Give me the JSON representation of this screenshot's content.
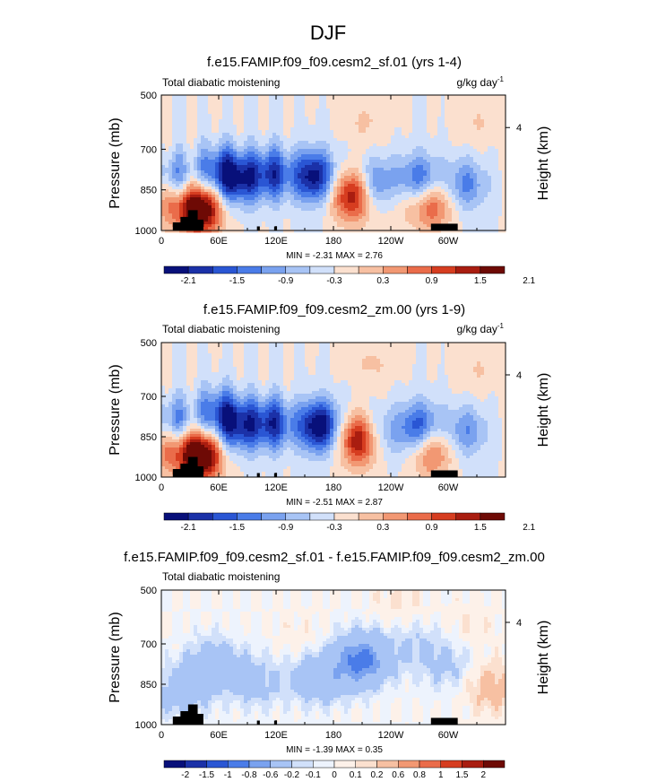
{
  "figure": {
    "title": "DJF"
  },
  "colors": {
    "frame": "#000000",
    "topography": "#000000",
    "colormap_absolute": [
      "#08107a",
      "#1b31a8",
      "#2a56d4",
      "#4a7ce8",
      "#7aa2ef",
      "#a8c4f5",
      "#d1e0fa",
      "#fbe0cf",
      "#f7c0a2",
      "#f29873",
      "#ea6c4a",
      "#d63d20",
      "#a91d10",
      "#6e0a05"
    ],
    "colormap_difference": [
      "#08107a",
      "#1b31a8",
      "#2a56d4",
      "#4a7ce8",
      "#7aa2ef",
      "#a8c4f5",
      "#d1e0fa",
      "#edf3fd",
      "#fdf1e9",
      "#fbe0cf",
      "#f7c0a2",
      "#f29873",
      "#ea6c4a",
      "#d63d20",
      "#a91d10",
      "#6e0a05"
    ]
  },
  "chart_data": [
    {
      "type": "heatmap",
      "title": "f.e15.FAMIP.f09_f09.cesm2_sf.01 (yrs 1-4)",
      "left_string": "Total diabatic moistening",
      "units": "g/kg day",
      "units_exponent": "-1",
      "ylabel": "Pressure (mb)",
      "ylabel_right": "Height (km)",
      "x_ticks": [
        "0",
        "60E",
        "120E",
        "180",
        "120W",
        "60W"
      ],
      "x_tick_values": [
        0,
        60,
        120,
        180,
        240,
        300
      ],
      "xlim": [
        0,
        360
      ],
      "y_ticks": [
        "500",
        "700",
        "850",
        "1000"
      ],
      "y_tick_values": [
        500,
        700,
        850,
        1000
      ],
      "ylim": [
        1000,
        500
      ],
      "y_right_ticks": [
        "4"
      ],
      "y_right_tick_values": [
        4
      ],
      "stats": "MIN = -2.31  MAX =  2.76",
      "min": -2.31,
      "max": 2.76,
      "colorbar_labels": [
        "-2.1",
        "-1.5",
        "-0.9",
        "-0.3",
        "0.3",
        "0.9",
        "1.5",
        "2.1"
      ],
      "features": [
        {
          "lon": 160,
          "p": 800,
          "value": -2.0
        },
        {
          "lon": 115,
          "p": 790,
          "value": -1.5
        },
        {
          "lon": 80,
          "p": 810,
          "value": -1.6
        },
        {
          "lon": 60,
          "p": 780,
          "value": -1.2
        },
        {
          "lon": 225,
          "p": 830,
          "value": -1.2
        },
        {
          "lon": 270,
          "p": 820,
          "value": -1.5
        },
        {
          "lon": 318,
          "p": 830,
          "value": -1.0
        },
        {
          "lon": 14,
          "p": 820,
          "value": -1.3
        },
        {
          "lon": 200,
          "p": 870,
          "value": 1.9
        },
        {
          "lon": 40,
          "p": 920,
          "value": 2.6
        },
        {
          "lon": 8,
          "p": 880,
          "value": 1.1
        },
        {
          "lon": 282,
          "p": 900,
          "value": 1.4
        },
        {
          "lon": 250,
          "p": 880,
          "value": 0.4
        },
        {
          "lon": 330,
          "p": 600,
          "value": 0.3
        },
        {
          "lon": 215,
          "p": 600,
          "value": 0.35
        }
      ]
    },
    {
      "type": "heatmap",
      "title": "f.e15.FAMIP.f09_f09.cesm2_zm.00 (yrs 1-9)",
      "left_string": "Total diabatic moistening",
      "units": "g/kg day",
      "units_exponent": "-1",
      "ylabel": "Pressure (mb)",
      "ylabel_right": "Height (km)",
      "x_ticks": [
        "0",
        "60E",
        "120E",
        "180",
        "120W",
        "60W"
      ],
      "x_tick_values": [
        0,
        60,
        120,
        180,
        240,
        300
      ],
      "xlim": [
        0,
        360
      ],
      "y_ticks": [
        "500",
        "700",
        "850",
        "1000"
      ],
      "y_tick_values": [
        500,
        700,
        850,
        1000
      ],
      "ylim": [
        1000,
        500
      ],
      "y_right_ticks": [
        "4"
      ],
      "y_right_tick_values": [
        4
      ],
      "stats": "MIN = -2.51  MAX =  2.87",
      "min": -2.51,
      "max": 2.87,
      "colorbar_labels": [
        "-2.1",
        "-1.5",
        "-0.9",
        "-0.3",
        "0.3",
        "0.9",
        "1.5",
        "2.1"
      ],
      "features": [
        {
          "lon": 165,
          "p": 810,
          "value": -2.2
        },
        {
          "lon": 115,
          "p": 800,
          "value": -1.6
        },
        {
          "lon": 80,
          "p": 810,
          "value": -1.5
        },
        {
          "lon": 60,
          "p": 760,
          "value": -1.2
        },
        {
          "lon": 225,
          "p": 840,
          "value": -1.0
        },
        {
          "lon": 270,
          "p": 820,
          "value": -1.6
        },
        {
          "lon": 318,
          "p": 830,
          "value": -0.9
        },
        {
          "lon": 14,
          "p": 810,
          "value": -1.3
        },
        {
          "lon": 208,
          "p": 860,
          "value": 2.2
        },
        {
          "lon": 40,
          "p": 920,
          "value": 2.7
        },
        {
          "lon": 8,
          "p": 880,
          "value": 1.1
        },
        {
          "lon": 282,
          "p": 900,
          "value": 1.3
        },
        {
          "lon": 330,
          "p": 600,
          "value": 0.3
        },
        {
          "lon": 220,
          "p": 580,
          "value": 0.35
        }
      ]
    },
    {
      "type": "heatmap",
      "title": "f.e15.FAMIP.f09_f09.cesm2_sf.01 - f.e15.FAMIP.f09_f09.cesm2_zm.00",
      "left_string": "Total diabatic moistening",
      "units": "",
      "units_exponent": "",
      "ylabel": "Pressure (mb)",
      "ylabel_right": "Height (km)",
      "x_ticks": [
        "0",
        "60E",
        "120E",
        "180",
        "120W",
        "60W"
      ],
      "x_tick_values": [
        0,
        60,
        120,
        180,
        240,
        300
      ],
      "xlim": [
        0,
        360
      ],
      "y_ticks": [
        "500",
        "700",
        "850",
        "1000"
      ],
      "y_tick_values": [
        500,
        700,
        850,
        1000
      ],
      "ylim": [
        1000,
        500
      ],
      "y_right_ticks": [
        "4"
      ],
      "y_right_tick_values": [
        4
      ],
      "stats": "MIN = -1.39  MAX =  0.35",
      "min": -1.39,
      "max": 0.35,
      "colorbar_labels": [
        "-2",
        "-1.5",
        "-1",
        "-0.8",
        "-0.6",
        "-0.2",
        "-0.1",
        "0",
        "0.1",
        "0.2",
        "0.6",
        "0.8",
        "1",
        "1.5",
        "2"
      ],
      "features": [
        {
          "lon": 210,
          "p": 760,
          "value": -0.9
        },
        {
          "lon": 165,
          "p": 820,
          "value": -0.5
        },
        {
          "lon": 55,
          "p": 780,
          "value": -0.45
        },
        {
          "lon": 100,
          "p": 840,
          "value": -0.3
        },
        {
          "lon": 20,
          "p": 880,
          "value": -0.35
        },
        {
          "lon": 265,
          "p": 700,
          "value": -0.2
        },
        {
          "lon": 300,
          "p": 780,
          "value": -0.25
        },
        {
          "lon": 345,
          "p": 860,
          "value": 0.3
        },
        {
          "lon": 150,
          "p": 700,
          "value": 0.1
        },
        {
          "lon": 250,
          "p": 560,
          "value": 0.12
        },
        {
          "lon": 320,
          "p": 640,
          "value": 0.1
        }
      ]
    }
  ]
}
